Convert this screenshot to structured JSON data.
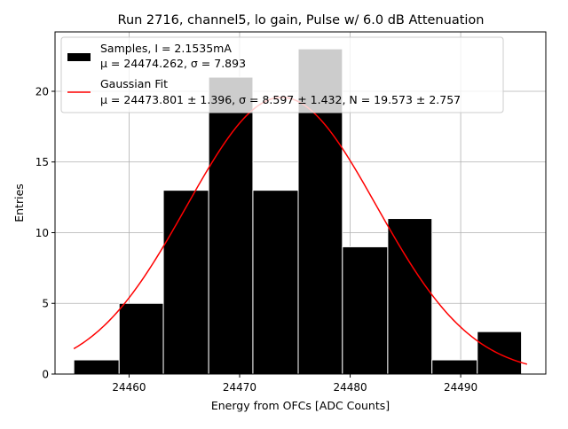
{
  "chart_data": {
    "type": "bar",
    "title": "Run 2716, channel5, lo gain, Pulse w/ 6.0 dB Attenuation",
    "xlabel": "Energy from OFCs [ADC Counts]",
    "ylabel": "Entries",
    "xlim": [
      24453.3,
      24497.7
    ],
    "ylim": [
      0,
      24.2
    ],
    "xticks": [
      24460,
      24470,
      24480,
      24490
    ],
    "yticks": [
      0,
      5,
      10,
      15,
      20
    ],
    "grid": true,
    "legend_position": "top-left",
    "bins": {
      "edges": [
        24455.0,
        24459.1,
        24463.1,
        24467.2,
        24471.2,
        24475.3,
        24479.3,
        24483.4,
        24487.4,
        24491.5,
        24495.5
      ],
      "counts": [
        1,
        5,
        13,
        21,
        13,
        23,
        9,
        11,
        1,
        3
      ]
    },
    "fit": {
      "mu": 24473.801,
      "sigma": 8.597,
      "N": 19.573,
      "x_range": [
        24455.0,
        24496.0
      ]
    },
    "legend": [
      {
        "name": "samples",
        "line1": "Samples, I = 2.1535mA",
        "line2": "μ = 24474.262, σ = 7.893",
        "color": "#000000"
      },
      {
        "name": "fit",
        "line1": "Gaussian Fit",
        "line2": "μ = 24473.801 ± 1.396, σ = 8.597 ± 1.432, N = 19.573 ± 2.757",
        "color": "#ff0000"
      }
    ]
  }
}
